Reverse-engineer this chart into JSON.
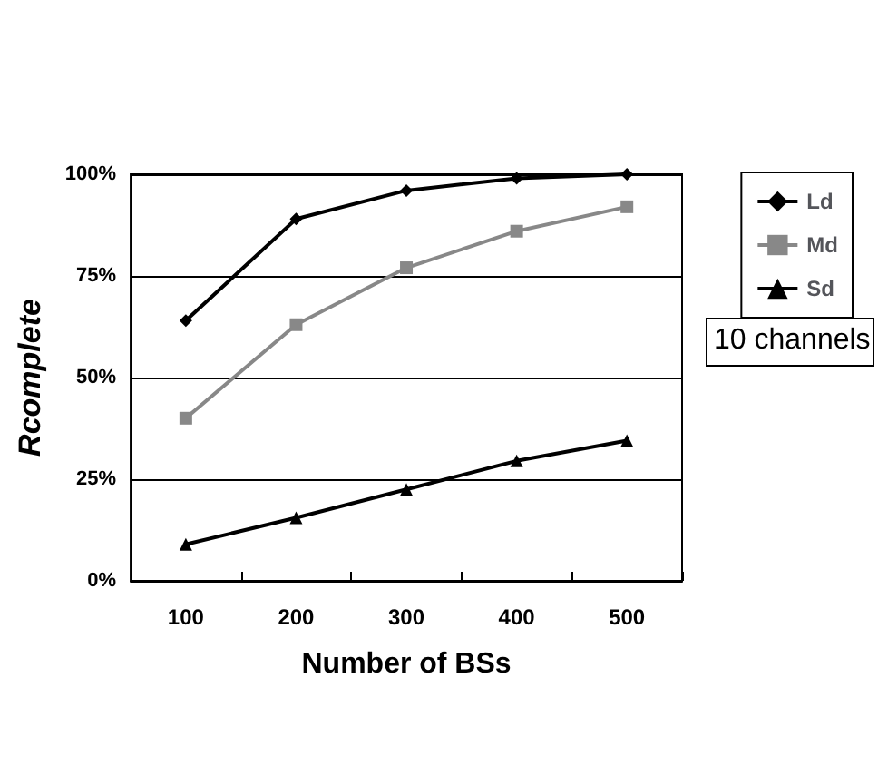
{
  "chart_data": {
    "type": "line",
    "xlabel": "Number of BSs",
    "ylabel": "Rcomplete",
    "categories": [
      "100",
      "200",
      "300",
      "400",
      "500"
    ],
    "series": [
      {
        "name": "Ld",
        "color": "#000000",
        "marker": "diamond",
        "values": [
          64,
          89,
          96,
          99,
          100
        ]
      },
      {
        "name": "Md",
        "color": "#888888",
        "marker": "square",
        "values": [
          40,
          63,
          77,
          86,
          92
        ]
      },
      {
        "name": "Sd",
        "color": "#000000",
        "marker": "triangle",
        "values": [
          9,
          15.5,
          22.5,
          29.5,
          34.5
        ]
      }
    ],
    "ylim": [
      0,
      100
    ],
    "yticks": [
      {
        "value": 0,
        "label": "0%"
      },
      {
        "value": 25,
        "label": "25%"
      },
      {
        "value": 50,
        "label": "50%"
      },
      {
        "value": 75,
        "label": "75%"
      },
      {
        "value": 100,
        "label": "100%"
      }
    ],
    "grid": "y",
    "legend": "right",
    "line_style": "solid",
    "annotations": [
      "10 channels"
    ]
  }
}
